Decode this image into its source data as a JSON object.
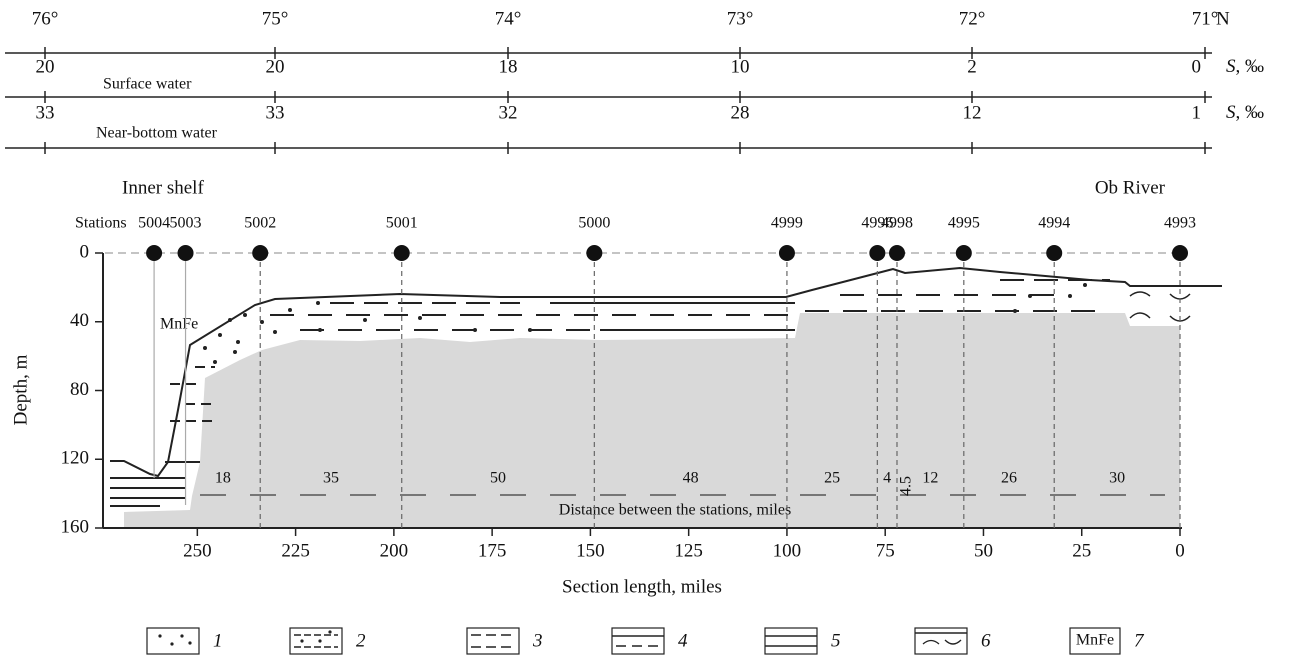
{
  "top_scale": {
    "longitudes": [
      "76°",
      "75°",
      "74°",
      "73°",
      "72°",
      "71°"
    ],
    "hemisphere": "N",
    "rows": [
      {
        "label": "Surface water",
        "unit_symbol": "S",
        "unit": ", ‰",
        "values": [
          "20",
          "20",
          "18",
          "10",
          "2",
          "0"
        ]
      },
      {
        "label": "Near-bottom water",
        "unit_symbol": "S",
        "unit": ", ‰",
        "values": [
          "33",
          "33",
          "32",
          "28",
          "12",
          "1"
        ]
      }
    ]
  },
  "section": {
    "region_left": "Inner shelf",
    "region_right": "Ob River",
    "stations_label": "Stations",
    "stations": [
      {
        "id": "5004",
        "distance": 261
      },
      {
        "id": "5003",
        "distance": 253
      },
      {
        "id": "5002",
        "distance": 234
      },
      {
        "id": "5001",
        "distance": 198
      },
      {
        "id": "5000",
        "distance": 149
      },
      {
        "id": "4999",
        "distance": 100
      },
      {
        "id": "4996",
        "distance": 77
      },
      {
        "id": "4998",
        "distance": 72
      },
      {
        "id": "4995",
        "distance": 55
      },
      {
        "id": "4994",
        "distance": 32
      },
      {
        "id": "4993",
        "distance": 0
      }
    ],
    "gaps": [
      "18",
      "35",
      "50",
      "48",
      "25",
      "4",
      "12",
      "26",
      "30"
    ],
    "extra_gap": "4.5",
    "distances_caption": "Distance between the stations, miles",
    "mnfe_label": "MnFe",
    "y_label": "Depth, m",
    "x_label": "Section length, miles",
    "xlim": [
      274,
      0
    ],
    "ylim": [
      0,
      160
    ],
    "xticks": [
      250,
      225,
      200,
      175,
      150,
      125,
      100,
      75,
      50,
      25,
      0
    ],
    "yticks": [
      0,
      40,
      80,
      120,
      160
    ]
  },
  "legend": [
    {
      "number": "1"
    },
    {
      "number": "2"
    },
    {
      "number": "3"
    },
    {
      "number": "4"
    },
    {
      "number": "5"
    },
    {
      "number": "6"
    },
    {
      "number": "7",
      "box_text": "MnFe"
    }
  ]
}
